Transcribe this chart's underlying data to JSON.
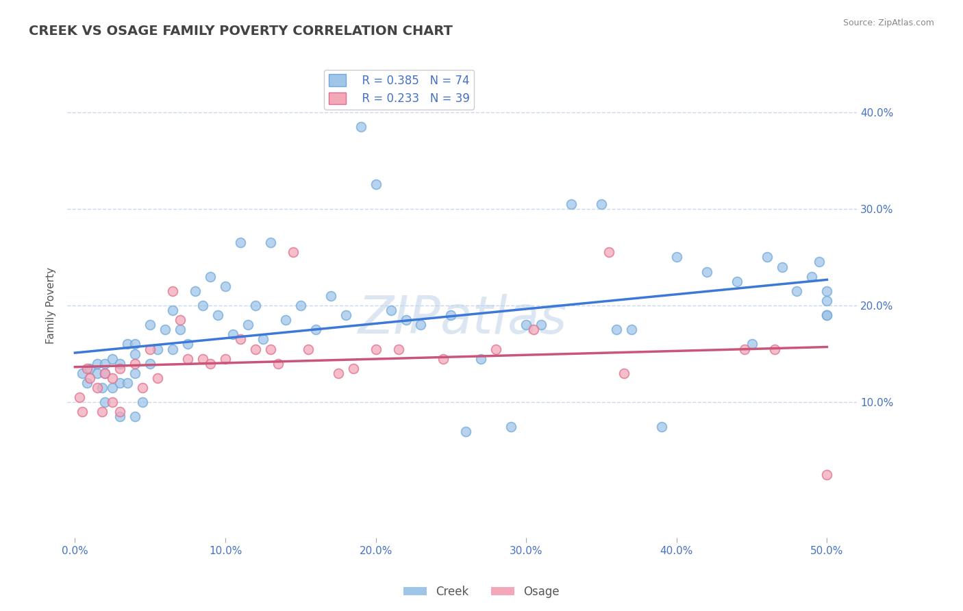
{
  "title": "CREEK VS OSAGE FAMILY POVERTY CORRELATION CHART",
  "source": "Source: ZipAtlas.com",
  "ylabel": "Family Poverty",
  "xlim": [
    -0.005,
    0.52
  ],
  "ylim": [
    -0.04,
    0.44
  ],
  "xticks": [
    0.0,
    0.1,
    0.2,
    0.3,
    0.4,
    0.5
  ],
  "xtick_labels": [
    "0.0%",
    "10.0%",
    "20.0%",
    "30.0%",
    "40.0%",
    "50.0%"
  ],
  "ytick_labels": [
    "10.0%",
    "20.0%",
    "30.0%",
    "40.0%"
  ],
  "yticks": [
    0.1,
    0.2,
    0.3,
    0.4
  ],
  "creek_color": "#9fc5e8",
  "osage_color": "#f4a7b9",
  "creek_edge": "#6fa8dc",
  "osage_edge": "#e06c8a",
  "trend_blue": "#3c78d8",
  "trend_pink": "#c9557a",
  "creek_R": 0.385,
  "creek_N": 74,
  "osage_R": 0.233,
  "osage_N": 39,
  "creek_x": [
    0.005,
    0.008,
    0.01,
    0.015,
    0.015,
    0.018,
    0.02,
    0.02,
    0.02,
    0.025,
    0.025,
    0.03,
    0.03,
    0.03,
    0.035,
    0.035,
    0.04,
    0.04,
    0.04,
    0.04,
    0.045,
    0.05,
    0.05,
    0.055,
    0.06,
    0.065,
    0.065,
    0.07,
    0.075,
    0.08,
    0.085,
    0.09,
    0.095,
    0.1,
    0.105,
    0.11,
    0.115,
    0.12,
    0.125,
    0.13,
    0.14,
    0.15,
    0.16,
    0.17,
    0.18,
    0.19,
    0.2,
    0.21,
    0.22,
    0.23,
    0.25,
    0.26,
    0.27,
    0.29,
    0.3,
    0.31,
    0.33,
    0.35,
    0.36,
    0.37,
    0.39,
    0.4,
    0.42,
    0.44,
    0.45,
    0.46,
    0.47,
    0.48,
    0.49,
    0.495,
    0.5,
    0.5,
    0.5,
    0.5
  ],
  "creek_y": [
    0.13,
    0.12,
    0.135,
    0.14,
    0.13,
    0.115,
    0.14,
    0.13,
    0.1,
    0.145,
    0.115,
    0.14,
    0.12,
    0.085,
    0.16,
    0.12,
    0.16,
    0.15,
    0.13,
    0.085,
    0.1,
    0.18,
    0.14,
    0.155,
    0.175,
    0.195,
    0.155,
    0.175,
    0.16,
    0.215,
    0.2,
    0.23,
    0.19,
    0.22,
    0.17,
    0.265,
    0.18,
    0.2,
    0.165,
    0.265,
    0.185,
    0.2,
    0.175,
    0.21,
    0.19,
    0.385,
    0.325,
    0.195,
    0.185,
    0.18,
    0.19,
    0.07,
    0.145,
    0.075,
    0.18,
    0.18,
    0.305,
    0.305,
    0.175,
    0.175,
    0.075,
    0.25,
    0.235,
    0.225,
    0.16,
    0.25,
    0.24,
    0.215,
    0.23,
    0.245,
    0.215,
    0.205,
    0.19,
    0.19
  ],
  "osage_x": [
    0.003,
    0.005,
    0.008,
    0.01,
    0.015,
    0.018,
    0.02,
    0.025,
    0.025,
    0.03,
    0.03,
    0.04,
    0.045,
    0.05,
    0.055,
    0.065,
    0.07,
    0.075,
    0.085,
    0.09,
    0.1,
    0.11,
    0.12,
    0.13,
    0.135,
    0.145,
    0.155,
    0.175,
    0.185,
    0.2,
    0.215,
    0.245,
    0.28,
    0.305,
    0.355,
    0.365,
    0.445,
    0.465,
    0.5
  ],
  "osage_y": [
    0.105,
    0.09,
    0.135,
    0.125,
    0.115,
    0.09,
    0.13,
    0.125,
    0.1,
    0.135,
    0.09,
    0.14,
    0.115,
    0.155,
    0.125,
    0.215,
    0.185,
    0.145,
    0.145,
    0.14,
    0.145,
    0.165,
    0.155,
    0.155,
    0.14,
    0.255,
    0.155,
    0.13,
    0.135,
    0.155,
    0.155,
    0.145,
    0.155,
    0.175,
    0.255,
    0.13,
    0.155,
    0.155,
    0.025
  ],
  "watermark": "ZIPatlas",
  "background_color": "#ffffff",
  "grid_color": "#c9d7e8",
  "title_color": "#434343",
  "axis_label_color": "#555555",
  "tick_label_color": "#4472c4",
  "source_color": "#888888"
}
